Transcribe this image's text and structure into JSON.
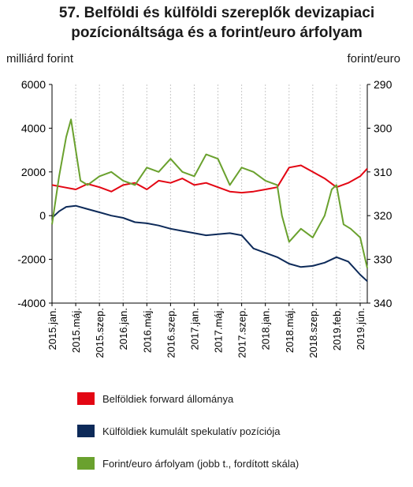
{
  "title": "57. Belföldi és külföldi szereplők devizapiaci pozícionáltsága és a forint/euro árfolyam",
  "chart_data": {
    "type": "line",
    "left_axis": {
      "label": "milliárd forint",
      "ylim": [
        -4000,
        6000
      ],
      "ticks": [
        "6000",
        "4000",
        "2000",
        "0",
        "-2000",
        "-4000"
      ]
    },
    "right_axis": {
      "label": "forint/euro",
      "ylim": [
        290,
        340
      ],
      "inverted": true,
      "ticks": [
        "290",
        "300",
        "310",
        "320",
        "330",
        "340"
      ]
    },
    "x_ticks": [
      "2015.jan.",
      "2015.máj.",
      "2015.szep.",
      "2016.jan.",
      "2016.máj.",
      "2016.szep.",
      "2017.jan.",
      "2017.máj.",
      "2017.szep.",
      "2018.jan.",
      "2018.máj.",
      "2018.szep.",
      "2019.feb.",
      "2019.jún."
    ],
    "grid": "vertical",
    "legend_position": "bottom",
    "series": [
      {
        "name": "Belföldiek forward állománya",
        "color": "#e30613",
        "axis": "left",
        "x": [
          0,
          0.5,
          1,
          1.5,
          2,
          2.5,
          3,
          3.5,
          4,
          4.5,
          5,
          5.5,
          6,
          6.5,
          7,
          7.5,
          8,
          8.5,
          9,
          9.5,
          10,
          10.5,
          11,
          11.5,
          12,
          12.5,
          13,
          13.3
        ],
        "values": [
          1400,
          1300,
          1200,
          1450,
          1300,
          1100,
          1400,
          1500,
          1200,
          1600,
          1500,
          1700,
          1400,
          1500,
          1300,
          1100,
          1050,
          1100,
          1200,
          1300,
          2200,
          2300,
          2000,
          1700,
          1300,
          1500,
          1800,
          2150
        ]
      },
      {
        "name": "Külföldiek kumulált spekulatív pozíciója",
        "color": "#0d2a59",
        "axis": "left",
        "x": [
          0,
          0.3,
          0.6,
          1,
          1.5,
          2,
          2.5,
          3,
          3.5,
          4,
          4.5,
          5,
          5.5,
          6,
          6.5,
          7,
          7.5,
          8,
          8.5,
          9,
          9.5,
          10,
          10.5,
          11,
          11.5,
          12,
          12.5,
          13,
          13.3
        ],
        "values": [
          -100,
          200,
          400,
          450,
          300,
          150,
          0,
          -100,
          -300,
          -350,
          -450,
          -600,
          -700,
          -800,
          -900,
          -850,
          -800,
          -900,
          -1500,
          -1700,
          -1900,
          -2200,
          -2350,
          -2300,
          -2150,
          -1900,
          -2100,
          -2700,
          -3000
        ]
      },
      {
        "name": "Forint/euro árfolyam (jobb t., fordított skála)",
        "color": "#6aa12e",
        "axis": "right",
        "x": [
          0,
          0.3,
          0.6,
          0.8,
          1,
          1.2,
          1.5,
          2,
          2.5,
          3,
          3.5,
          4,
          4.5,
          5,
          5.5,
          6,
          6.5,
          7,
          7.5,
          8,
          8.5,
          9,
          9.5,
          9.7,
          10,
          10.5,
          11,
          11.5,
          11.8,
          12,
          12.3,
          12.6,
          13,
          13.3
        ],
        "values": [
          322,
          311,
          302,
          298,
          305,
          312,
          313,
          311,
          310,
          312,
          313,
          309,
          310,
          307,
          310,
          311,
          306,
          307,
          313,
          309,
          310,
          312,
          313,
          320,
          326,
          323,
          325,
          320,
          314,
          313,
          322,
          323,
          325,
          332
        ]
      }
    ]
  }
}
